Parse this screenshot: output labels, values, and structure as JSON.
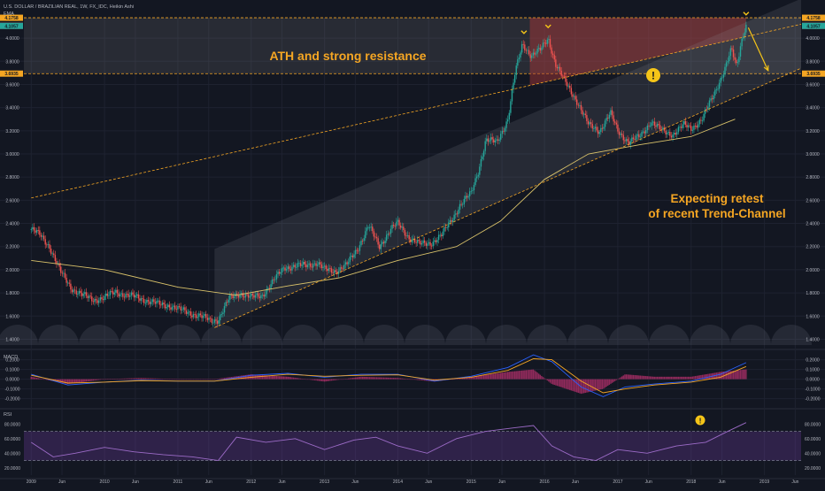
{
  "chart_data": {
    "type": "candlestick",
    "symbol_header": "U.S. DOLLAR / BRAZILIAN REAL, 1W, FX_IDC, Heikin Ashi",
    "indicator_label": "EMA",
    "x": {
      "range": [
        2008.9,
        2019.5
      ],
      "tick_labels": [
        {
          "label": "2009",
          "t": 2009.0
        },
        {
          "label": "Jun",
          "t": 2009.42
        },
        {
          "label": "2010",
          "t": 2010.0
        },
        {
          "label": "Jun",
          "t": 2010.42
        },
        {
          "label": "2011",
          "t": 2011.0
        },
        {
          "label": "Jun",
          "t": 2011.42
        },
        {
          "label": "2012",
          "t": 2012.0
        },
        {
          "label": "Jun",
          "t": 2012.42
        },
        {
          "label": "2013",
          "t": 2013.0
        },
        {
          "label": "Jun",
          "t": 2013.42
        },
        {
          "label": "2014",
          "t": 2014.0
        },
        {
          "label": "Jun",
          "t": 2014.42
        },
        {
          "label": "2015",
          "t": 2015.0
        },
        {
          "label": "Jun",
          "t": 2015.42
        },
        {
          "label": "2016",
          "t": 2016.0
        },
        {
          "label": "Jun",
          "t": 2016.42
        },
        {
          "label": "2017",
          "t": 2017.0
        },
        {
          "label": "Jun",
          "t": 2017.42
        },
        {
          "label": "2018",
          "t": 2018.0
        },
        {
          "label": "Jun",
          "t": 2018.42
        },
        {
          "label": "2019",
          "t": 2019.0
        },
        {
          "label": "Jun",
          "t": 2019.42
        }
      ]
    },
    "price_axis": {
      "range": [
        1.35,
        4.1
      ],
      "ticks": [
        {
          "label": "1.4000",
          "v": 1.4
        },
        {
          "label": "1.6000",
          "v": 1.6
        },
        {
          "label": "1.8000",
          "v": 1.8
        },
        {
          "label": "2.0000",
          "v": 2.0
        },
        {
          "label": "2.2000",
          "v": 2.2
        },
        {
          "label": "2.4000",
          "v": 2.4
        },
        {
          "label": "2.6000",
          "v": 2.6
        },
        {
          "label": "2.8000",
          "v": 2.8
        },
        {
          "label": "3.0000",
          "v": 3.0
        },
        {
          "label": "3.2000",
          "v": 3.2
        },
        {
          "label": "3.4000",
          "v": 3.4
        },
        {
          "label": "3.6000",
          "v": 3.6
        },
        {
          "label": "3.8000",
          "v": 3.8
        },
        {
          "label": "4.0000",
          "v": 4.0
        }
      ],
      "price_tags": [
        {
          "label": "4.1758",
          "v": 4.1758,
          "color": "#f5a623"
        },
        {
          "label": "4.1065",
          "v": 4.1065,
          "color": "#ef5350"
        },
        {
          "label": "4.1057",
          "v": 4.1057,
          "color": "#26a69a"
        },
        {
          "label": "3.6935",
          "v": 3.6935,
          "color": "#f5a623"
        }
      ]
    },
    "series": [
      {
        "type": "candlestick",
        "up_color": "#26a69a",
        "down_color": "#ef5350",
        "points": [
          [
            2009.0,
            2.35
          ],
          [
            2009.12,
            2.3
          ],
          [
            2009.25,
            2.2
          ],
          [
            2009.4,
            1.98
          ],
          [
            2009.55,
            1.84
          ],
          [
            2009.7,
            1.78
          ],
          [
            2009.85,
            1.74
          ],
          [
            2010.0,
            1.76
          ],
          [
            2010.15,
            1.81
          ],
          [
            2010.3,
            1.78
          ],
          [
            2010.45,
            1.76
          ],
          [
            2010.6,
            1.73
          ],
          [
            2010.75,
            1.7
          ],
          [
            2010.9,
            1.69
          ],
          [
            2011.0,
            1.66
          ],
          [
            2011.15,
            1.63
          ],
          [
            2011.3,
            1.6
          ],
          [
            2011.45,
            1.56
          ],
          [
            2011.55,
            1.57
          ],
          [
            2011.7,
            1.75
          ],
          [
            2011.85,
            1.8
          ],
          [
            2012.0,
            1.76
          ],
          [
            2012.15,
            1.78
          ],
          [
            2012.3,
            1.9
          ],
          [
            2012.45,
            2.02
          ],
          [
            2012.6,
            2.03
          ],
          [
            2012.75,
            2.04
          ],
          [
            2012.9,
            2.06
          ],
          [
            2013.0,
            2.0
          ],
          [
            2013.15,
            1.99
          ],
          [
            2013.3,
            2.04
          ],
          [
            2013.45,
            2.18
          ],
          [
            2013.6,
            2.38
          ],
          [
            2013.75,
            2.2
          ],
          [
            2013.9,
            2.35
          ],
          [
            2014.0,
            2.4
          ],
          [
            2014.15,
            2.28
          ],
          [
            2014.3,
            2.22
          ],
          [
            2014.45,
            2.23
          ],
          [
            2014.6,
            2.3
          ],
          [
            2014.75,
            2.45
          ],
          [
            2014.85,
            2.56
          ],
          [
            2015.0,
            2.66
          ],
          [
            2015.1,
            2.86
          ],
          [
            2015.2,
            3.12
          ],
          [
            2015.35,
            3.1
          ],
          [
            2015.5,
            3.3
          ],
          [
            2015.6,
            3.7
          ],
          [
            2015.7,
            3.95
          ],
          [
            2015.82,
            3.85
          ],
          [
            2015.95,
            3.9
          ],
          [
            2016.05,
            4.0
          ],
          [
            2016.15,
            3.78
          ],
          [
            2016.3,
            3.6
          ],
          [
            2016.45,
            3.45
          ],
          [
            2016.6,
            3.25
          ],
          [
            2016.75,
            3.2
          ],
          [
            2016.9,
            3.35
          ],
          [
            2017.0,
            3.2
          ],
          [
            2017.15,
            3.1
          ],
          [
            2017.3,
            3.15
          ],
          [
            2017.45,
            3.28
          ],
          [
            2017.6,
            3.2
          ],
          [
            2017.75,
            3.17
          ],
          [
            2017.9,
            3.25
          ],
          [
            2018.0,
            3.22
          ],
          [
            2018.15,
            3.3
          ],
          [
            2018.3,
            3.5
          ],
          [
            2018.45,
            3.72
          ],
          [
            2018.55,
            3.9
          ],
          [
            2018.62,
            3.75
          ],
          [
            2018.7,
            4.02
          ],
          [
            2018.75,
            4.11
          ]
        ]
      },
      {
        "type": "line",
        "color": "#d9c26a",
        "points": [
          [
            2009.0,
            2.08
          ],
          [
            2010.0,
            2.0
          ],
          [
            2011.0,
            1.85
          ],
          [
            2011.8,
            1.78
          ],
          [
            2012.5,
            1.86
          ],
          [
            2013.2,
            1.93
          ],
          [
            2014.0,
            2.08
          ],
          [
            2014.8,
            2.2
          ],
          [
            2015.4,
            2.42
          ],
          [
            2016.0,
            2.78
          ],
          [
            2016.6,
            3.0
          ],
          [
            2017.3,
            3.08
          ],
          [
            2018.0,
            3.15
          ],
          [
            2018.6,
            3.3
          ]
        ]
      }
    ],
    "resistance_zone": {
      "top": 4.1758,
      "bottom": 3.6935
    },
    "trendline_upper": [
      [
        2009.0,
        2.62
      ],
      [
        2019.5,
        4.12
      ]
    ],
    "channel_lower_trend": [
      [
        2011.5,
        1.5
      ],
      [
        2019.5,
        3.74
      ]
    ],
    "channel_upper_trend": [
      [
        2011.5,
        2.18
      ],
      [
        2019.5,
        4.34
      ]
    ],
    "projection_arrow": [
      [
        2018.78,
        4.09
      ],
      [
        2019.05,
        3.72
      ]
    ],
    "annotations": [
      {
        "text": "ATH and strong resistance"
      },
      {
        "text": "Expecting retest"
      },
      {
        "text": "of recent Trend-Channel"
      }
    ],
    "markers": [
      "!",
      "!"
    ],
    "macd": {
      "label": "MACD",
      "range": [
        -0.24,
        0.26
      ],
      "ticks": [
        {
          "label": "0.2000",
          "v": 0.2
        },
        {
          "label": "0.1000",
          "v": 0.1
        },
        {
          "label": "0.0000",
          "v": 0.0
        },
        {
          "label": "-0.1000",
          "v": -0.1
        },
        {
          "label": "-0.2000",
          "v": -0.2
        }
      ],
      "macd_line": [
        [
          2009.0,
          0.05
        ],
        [
          2009.5,
          -0.06
        ],
        [
          2010.0,
          -0.03
        ],
        [
          2010.5,
          -0.01
        ],
        [
          2011.0,
          -0.02
        ],
        [
          2011.5,
          -0.02
        ],
        [
          2012.0,
          0.04
        ],
        [
          2012.5,
          0.06
        ],
        [
          2013.0,
          0.02
        ],
        [
          2013.5,
          0.05
        ],
        [
          2014.0,
          0.05
        ],
        [
          2014.5,
          -0.02
        ],
        [
          2015.0,
          0.03
        ],
        [
          2015.5,
          0.12
        ],
        [
          2015.85,
          0.25
        ],
        [
          2016.1,
          0.18
        ],
        [
          2016.5,
          -0.08
        ],
        [
          2016.8,
          -0.18
        ],
        [
          2017.1,
          -0.08
        ],
        [
          2017.5,
          -0.05
        ],
        [
          2018.0,
          -0.02
        ],
        [
          2018.4,
          0.05
        ],
        [
          2018.75,
          0.17
        ]
      ],
      "signal_line": [
        [
          2009.0,
          0.04
        ],
        [
          2009.5,
          -0.04
        ],
        [
          2010.0,
          -0.03
        ],
        [
          2010.5,
          -0.015
        ],
        [
          2011.0,
          -0.02
        ],
        [
          2011.5,
          -0.02
        ],
        [
          2012.0,
          0.02
        ],
        [
          2012.5,
          0.05
        ],
        [
          2013.0,
          0.03
        ],
        [
          2013.5,
          0.04
        ],
        [
          2014.0,
          0.045
        ],
        [
          2014.5,
          -0.01
        ],
        [
          2015.0,
          0.02
        ],
        [
          2015.5,
          0.09
        ],
        [
          2015.85,
          0.21
        ],
        [
          2016.1,
          0.2
        ],
        [
          2016.5,
          -0.02
        ],
        [
          2016.8,
          -0.14
        ],
        [
          2017.1,
          -0.1
        ],
        [
          2017.5,
          -0.06
        ],
        [
          2018.0,
          -0.03
        ],
        [
          2018.4,
          0.02
        ],
        [
          2018.75,
          0.13
        ]
      ]
    },
    "rsi": {
      "label": "RSI",
      "range": [
        10,
        95
      ],
      "ticks": [
        {
          "label": "80.0000",
          "v": 80
        },
        {
          "label": "60.0000",
          "v": 60
        },
        {
          "label": "40.0000",
          "v": 40
        },
        {
          "label": "20.0000",
          "v": 20
        }
      ],
      "band": [
        30,
        70
      ],
      "points": [
        [
          2009.0,
          55
        ],
        [
          2009.3,
          35
        ],
        [
          2009.6,
          40
        ],
        [
          2010.0,
          48
        ],
        [
          2010.4,
          42
        ],
        [
          2010.8,
          38
        ],
        [
          2011.2,
          35
        ],
        [
          2011.55,
          30
        ],
        [
          2011.8,
          62
        ],
        [
          2012.2,
          55
        ],
        [
          2012.6,
          60
        ],
        [
          2013.0,
          45
        ],
        [
          2013.4,
          58
        ],
        [
          2013.7,
          62
        ],
        [
          2014.0,
          50
        ],
        [
          2014.4,
          40
        ],
        [
          2014.8,
          60
        ],
        [
          2015.2,
          70
        ],
        [
          2015.6,
          75
        ],
        [
          2015.85,
          78
        ],
        [
          2016.1,
          50
        ],
        [
          2016.4,
          35
        ],
        [
          2016.7,
          30
        ],
        [
          2017.0,
          45
        ],
        [
          2017.4,
          40
        ],
        [
          2017.8,
          50
        ],
        [
          2018.2,
          55
        ],
        [
          2018.5,
          70
        ],
        [
          2018.75,
          82
        ]
      ]
    }
  }
}
